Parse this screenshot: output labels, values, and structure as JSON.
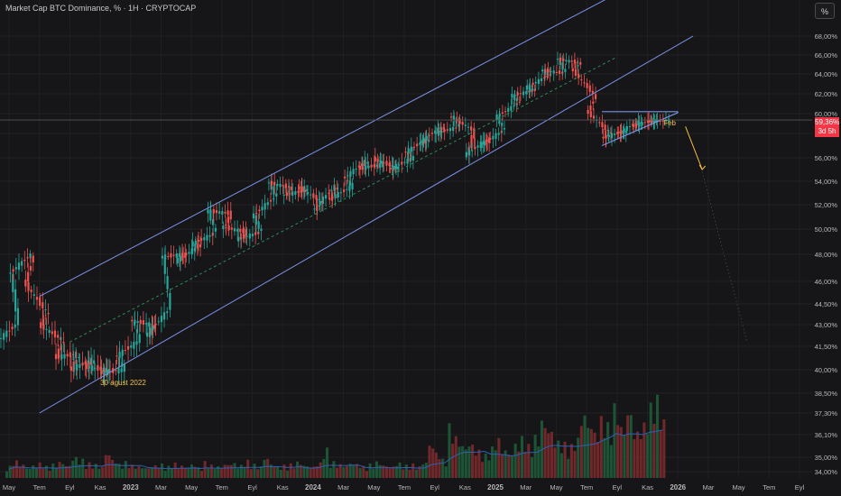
{
  "header": {
    "title": "Market Cap BTC Dominance, % · 1H · CRYPTOCAP",
    "scale_button": "%"
  },
  "price_tag": {
    "value": "59,36%",
    "countdown": "3d 5h"
  },
  "colors": {
    "background": "#161618",
    "up": "#26a69a",
    "down": "#ef5350",
    "channel": "#7b93e8",
    "accent_annotation": "#f5c242",
    "price_tag": "#f23645"
  },
  "chart_data": {
    "type": "candlestick",
    "title": "",
    "xlabel": "",
    "ylabel": "",
    "y_axis": {
      "ticks": [
        "68,00%",
        "66,00%",
        "64,00%",
        "62,00%",
        "60,00%",
        "58,00%",
        "56,00%",
        "54,00%",
        "52,00%",
        "50,00%",
        "48,00%",
        "46,00%",
        "44,50%",
        "43,00%",
        "41,50%",
        "40,00%",
        "38,50%",
        "37,30%",
        "36,10%",
        "35,00%",
        "34,00%"
      ],
      "tick_values": [
        68,
        66,
        64,
        62,
        60,
        58,
        56,
        54,
        52,
        50,
        48,
        46,
        44.5,
        43,
        41.5,
        40,
        38.5,
        37.3,
        36.1,
        35,
        34
      ],
      "ylim": [
        34,
        69.5
      ]
    },
    "x_axis": {
      "ticks": [
        "May",
        "Tem",
        "Eyl",
        "Kas",
        "2023",
        "Mar",
        "May",
        "Tem",
        "Eyl",
        "Kas",
        "2024",
        "Mar",
        "May",
        "Tem",
        "Eyl",
        "Kas",
        "2025",
        "Mar",
        "May",
        "Tem",
        "Eyl",
        "Kas",
        "2026",
        "Mar",
        "May",
        "Tem",
        "Eyl"
      ],
      "tick_months": [
        "2022-05",
        "2022-07",
        "2022-09",
        "2022-11",
        "2023-01",
        "2023-03",
        "2023-05",
        "2023-07",
        "2023-09",
        "2023-11",
        "2024-01",
        "2024-03",
        "2024-05",
        "2024-07",
        "2024-09",
        "2024-11",
        "2025-01",
        "2025-03",
        "2025-05",
        "2025-07",
        "2025-09",
        "2025-11",
        "2026-01",
        "2026-03",
        "2026-05",
        "2026-07",
        "2026-09"
      ]
    },
    "path_points": [
      [
        "2022-04",
        41.6
      ],
      [
        "2022-05",
        43.0
      ],
      [
        "2022-05",
        46.5
      ],
      [
        "2022-06",
        48.0
      ],
      [
        "2022-06",
        46.0
      ],
      [
        "2022-07",
        44.0
      ],
      [
        "2022-07",
        43.0
      ],
      [
        "2022-08",
        42.0
      ],
      [
        "2022-08",
        40.8
      ],
      [
        "2022-09",
        41.0
      ],
      [
        "2022-09",
        40.0
      ],
      [
        "2022-10",
        40.6
      ],
      [
        "2022-10",
        40.2
      ],
      [
        "2022-11",
        40.0
      ],
      [
        "2022-11",
        39.8
      ],
      [
        "2022-12",
        40.0
      ],
      [
        "2022-12",
        40.8
      ],
      [
        "2023-01",
        41.8
      ],
      [
        "2023-01",
        43.3
      ],
      [
        "2023-02",
        43.0
      ],
      [
        "2023-02",
        42.2
      ],
      [
        "2023-03",
        44.0
      ],
      [
        "2023-03",
        47.8
      ],
      [
        "2023-04",
        48.0
      ],
      [
        "2023-04",
        47.5
      ],
      [
        "2023-05",
        48.6
      ],
      [
        "2023-05",
        48.8
      ],
      [
        "2023-06",
        49.6
      ],
      [
        "2023-06",
        51.5
      ],
      [
        "2023-07",
        51.3
      ],
      [
        "2023-07",
        50.2
      ],
      [
        "2023-08",
        49.8
      ],
      [
        "2023-08",
        49.2
      ],
      [
        "2023-09",
        49.7
      ],
      [
        "2023-09",
        51.0
      ],
      [
        "2023-10",
        52.6
      ],
      [
        "2023-10",
        53.9
      ],
      [
        "2023-11",
        53.5
      ],
      [
        "2023-11",
        52.8
      ],
      [
        "2023-12",
        53.2
      ],
      [
        "2023-12",
        53.5
      ],
      [
        "2024-01",
        52.4
      ],
      [
        "2024-01",
        51.5
      ],
      [
        "2024-02",
        53.6
      ],
      [
        "2024-02",
        52.4
      ],
      [
        "2024-03",
        53.5
      ],
      [
        "2024-03",
        54.2
      ],
      [
        "2024-04",
        55.7
      ],
      [
        "2024-04",
        55.1
      ],
      [
        "2024-05",
        55.4
      ],
      [
        "2024-05",
        55.9
      ],
      [
        "2024-06",
        55.2
      ],
      [
        "2024-06",
        55.0
      ],
      [
        "2024-07",
        55.9
      ],
      [
        "2024-07",
        56.4
      ],
      [
        "2024-08",
        57.5
      ],
      [
        "2024-08",
        57.2
      ],
      [
        "2024-09",
        58.6
      ],
      [
        "2024-09",
        58.0
      ],
      [
        "2024-10",
        58.6
      ],
      [
        "2024-10",
        59.8
      ],
      [
        "2024-11",
        58.4
      ],
      [
        "2024-11",
        56.2
      ],
      [
        "2024-12",
        57.5
      ],
      [
        "2024-12",
        57.0
      ],
      [
        "2025-01",
        58.2
      ],
      [
        "2025-01",
        59.6
      ],
      [
        "2025-02",
        61.0
      ],
      [
        "2025-02",
        61.8
      ],
      [
        "2025-03",
        62.3
      ],
      [
        "2025-03",
        62.6
      ],
      [
        "2025-04",
        63.8
      ],
      [
        "2025-04",
        64.4
      ],
      [
        "2025-05",
        64.1
      ],
      [
        "2025-05",
        65.6
      ],
      [
        "2025-06",
        65.2
      ],
      [
        "2025-06",
        64.6
      ],
      [
        "2025-07",
        62.0
      ],
      [
        "2025-07",
        60.3
      ],
      [
        "2025-08",
        58.2
      ],
      [
        "2025-08",
        57.6
      ],
      [
        "2025-09",
        58.2
      ],
      [
        "2025-09",
        58.0
      ],
      [
        "2025-10",
        59.2
      ],
      [
        "2025-10",
        58.7
      ],
      [
        "2025-11",
        59.4
      ],
      [
        "2025-11",
        59.2
      ],
      [
        "2025-12",
        59.36
      ]
    ],
    "volume_profile": [
      0.1,
      0.15,
      0.12,
      0.09,
      0.11,
      0.13,
      0.1,
      0.12,
      0.14,
      0.11,
      0.18,
      0.16,
      0.13,
      0.12,
      0.1,
      0.22,
      0.16,
      0.12,
      0.14,
      0.11,
      0.1,
      0.09,
      0.11,
      0.12,
      0.1,
      0.13,
      0.11,
      0.1,
      0.12,
      0.09,
      0.14,
      0.11,
      0.1,
      0.12,
      0.13,
      0.11,
      0.15,
      0.12,
      0.1,
      0.18,
      0.12,
      0.1,
      0.11,
      0.12,
      0.14,
      0.11,
      0.1,
      0.13,
      0.25,
      0.14,
      0.12,
      0.11,
      0.13,
      0.12,
      0.1,
      0.12,
      0.14,
      0.11,
      0.1,
      0.13,
      0.11,
      0.12,
      0.1,
      0.14,
      0.3,
      0.22,
      0.16,
      0.45,
      0.35,
      0.28,
      0.3,
      0.24,
      0.2,
      0.26,
      0.34,
      0.25,
      0.22,
      0.3,
      0.35,
      0.28,
      0.36,
      0.5,
      0.42,
      0.32,
      0.3,
      0.28,
      0.34,
      0.56,
      0.48,
      0.4,
      0.52,
      0.46,
      0.62,
      0.44,
      0.58,
      0.4,
      0.46,
      0.62,
      0.7,
      0.52
    ],
    "channel": {
      "upper": [
        [
          "2022-07",
          45.0
        ],
        [
          "2025-09",
          72.5
        ]
      ],
      "mid_dashed": [
        [
          "2022-09",
          41.8
        ],
        [
          "2025-09",
          65.8
        ]
      ],
      "lower": [
        [
          "2022-07",
          37.3
        ],
        [
          "2026-02",
          68.0
        ]
      ]
    },
    "triangle": {
      "top": [
        [
          "2025-08",
          60.2
        ],
        [
          "2026-01",
          60.2
        ]
      ],
      "bottom": [
        [
          "2025-08",
          57.0
        ],
        [
          "2026-01",
          60.1
        ]
      ]
    },
    "projection_arrow": [
      [
        "2026-01",
        58.7
      ],
      [
        "2026-02",
        55.0
      ]
    ],
    "projection_dotted": [
      [
        "2026-02",
        54.8
      ],
      [
        "2026-05",
        41.8
      ]
    ],
    "annotations": [
      "30 agust 2022",
      "Feb"
    ]
  }
}
